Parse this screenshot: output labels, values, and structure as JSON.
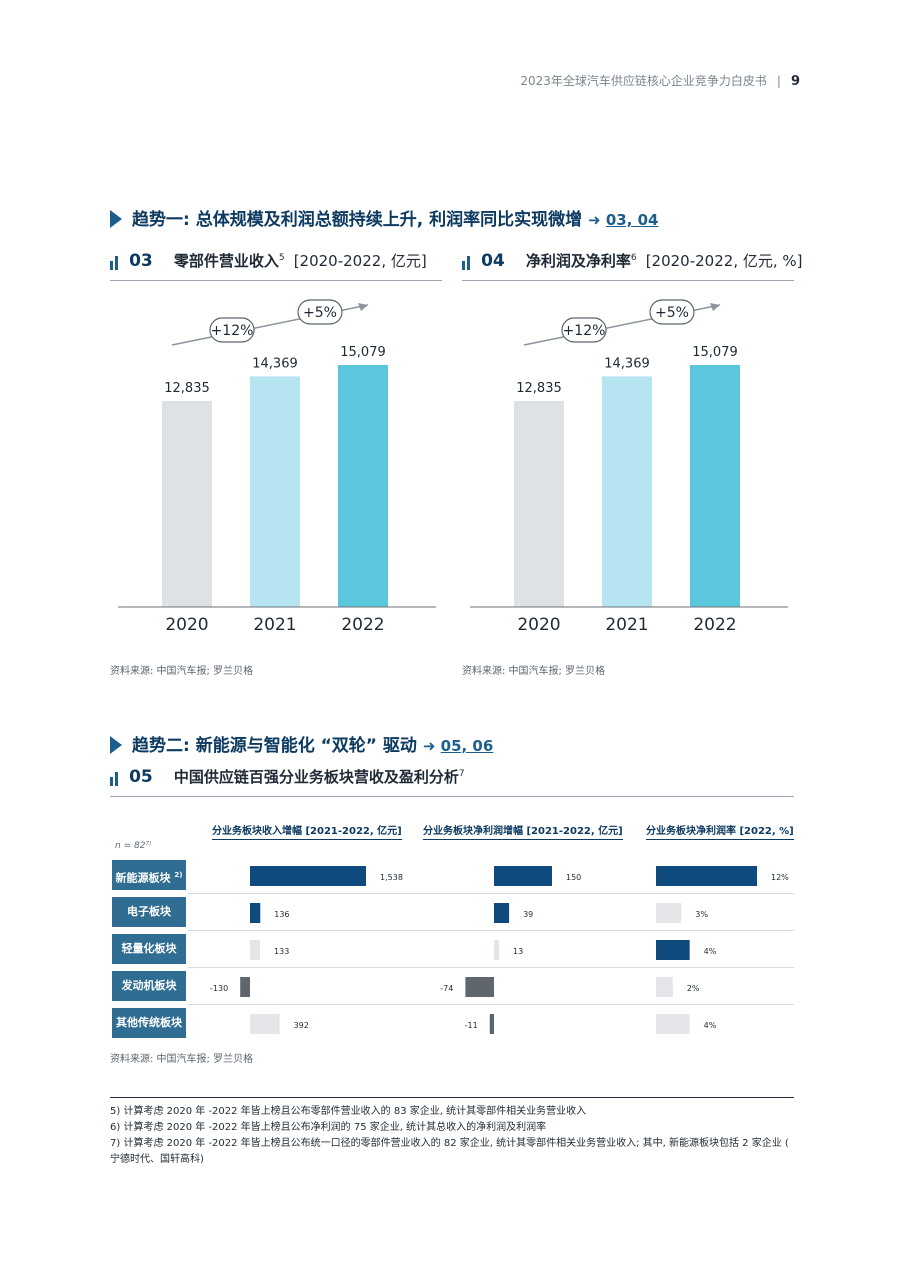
{
  "header": {
    "report_title": "2023年全球汽车供应链核心企业竞争力白皮书",
    "page_number": "9"
  },
  "trend1": {
    "title": "趋势一: 总体规模及利润总额持续上升, 利润率同比实现微增",
    "arrow": "➜",
    "refs": "03, 04"
  },
  "fig03": {
    "number": "03",
    "title": "零部件营业收入",
    "note": "5",
    "unit": "[2020-2022, 亿元]",
    "source": "资料来源: 中国汽车报; 罗兰贝格"
  },
  "fig04": {
    "number": "04",
    "title": "净利润及净利率",
    "note": "6",
    "unit": "[2020-2022, 亿元, %]",
    "source": "资料来源: 中国汽车报; 罗兰贝格"
  },
  "trend2": {
    "title": "趋势二: 新能源与智能化 “双轮” 驱动",
    "arrow": "➜",
    "refs": "05, 06"
  },
  "fig05": {
    "number": "05",
    "title": "中国供应链百强分业务板块营收及盈利分析",
    "note": "7",
    "n_label": "n = 82⁷⁾",
    "col_heads": [
      "分业务板块收入增幅 [2021-2022, 亿元]",
      "分业务板块净利润增幅 [2021-2022, 亿元]",
      "分业务板块净利润率 [2022, %]"
    ],
    "source": "资料来源: 中国汽车报; 罗兰贝格"
  },
  "chart_data": [
    {
      "type": "bar",
      "id": "fig03",
      "categories": [
        "2020",
        "2021",
        "2022"
      ],
      "values": [
        12835,
        14369,
        15079
      ],
      "value_labels": [
        "12,835",
        "14,369",
        "15,079"
      ],
      "ylim": [
        0,
        15079
      ],
      "colors": [
        "#dfe2e5",
        "#b6e4f0",
        "#5bc7dc"
      ],
      "annotations": [
        "+12%",
        "+5%"
      ]
    },
    {
      "type": "bar",
      "id": "fig04",
      "categories": [
        "2020",
        "2021",
        "2022"
      ],
      "values": [
        12835,
        14369,
        15079
      ],
      "value_labels": [
        "12,835",
        "14,369",
        "15,079"
      ],
      "ylim": [
        0,
        15079
      ],
      "colors": [
        "#dfe2e5",
        "#b6e4f0",
        "#5bc7dc"
      ],
      "annotations": [
        "+12%",
        "+5%"
      ]
    },
    {
      "type": "bar",
      "id": "fig05",
      "orientation": "horizontal",
      "categories": [
        "新能源板块",
        "电子板块",
        "轻量化板块",
        "发动机板块",
        "其他传统板块"
      ],
      "category_notes": [
        "2)",
        "",
        "",
        "",
        ""
      ],
      "series": [
        {
          "name": "分业务板块收入增幅 [2021-2022, 亿元]",
          "values": [
            1538,
            136,
            133,
            -130,
            392
          ],
          "labels": [
            "1,538",
            "136",
            "133",
            "-130",
            "392"
          ],
          "colors": [
            "#0e4a7e",
            "#0e4a7e",
            "#e3e5e8",
            "#5f666d",
            "#e3e5e8"
          ]
        },
        {
          "name": "分业务板块净利润增幅 [2021-2022, 亿元]",
          "values": [
            150,
            39,
            13,
            -74,
            -11
          ],
          "labels": [
            "150",
            "39",
            "13",
            "-74",
            "-11"
          ],
          "colors": [
            "#0e4a7e",
            "#0e4a7e",
            "#e3e5e8",
            "#5f666d",
            "#5f666d"
          ]
        },
        {
          "name": "分业务板块净利润率 [2022, %]",
          "values": [
            12,
            3,
            4,
            2,
            4
          ],
          "labels": [
            "12%",
            "3%",
            "4%",
            "2%",
            "4%"
          ],
          "colors": [
            "#0e4a7e",
            "#e3e5e8",
            "#0e4a7e",
            "#e3e5e8",
            "#e3e5e8"
          ]
        }
      ]
    }
  ],
  "footnotes": [
    "5) 计算考虑 2020 年 -2022 年皆上榜且公布零部件营业收入的 83 家企业, 统计其零部件相关业务营业收入",
    "6) 计算考虑 2020 年 -2022 年皆上榜且公布净利润的 75 家企业, 统计其总收入的净利润及利润率",
    "7) 计算考虑 2020 年 -2022 年皆上榜且公布统一口径的零部件营业收入的 82 家企业, 统计其零部件相关业务营业收入; 其中, 新能源板块包括 2 家企业 ( 宁德时代、国轩高科)"
  ]
}
